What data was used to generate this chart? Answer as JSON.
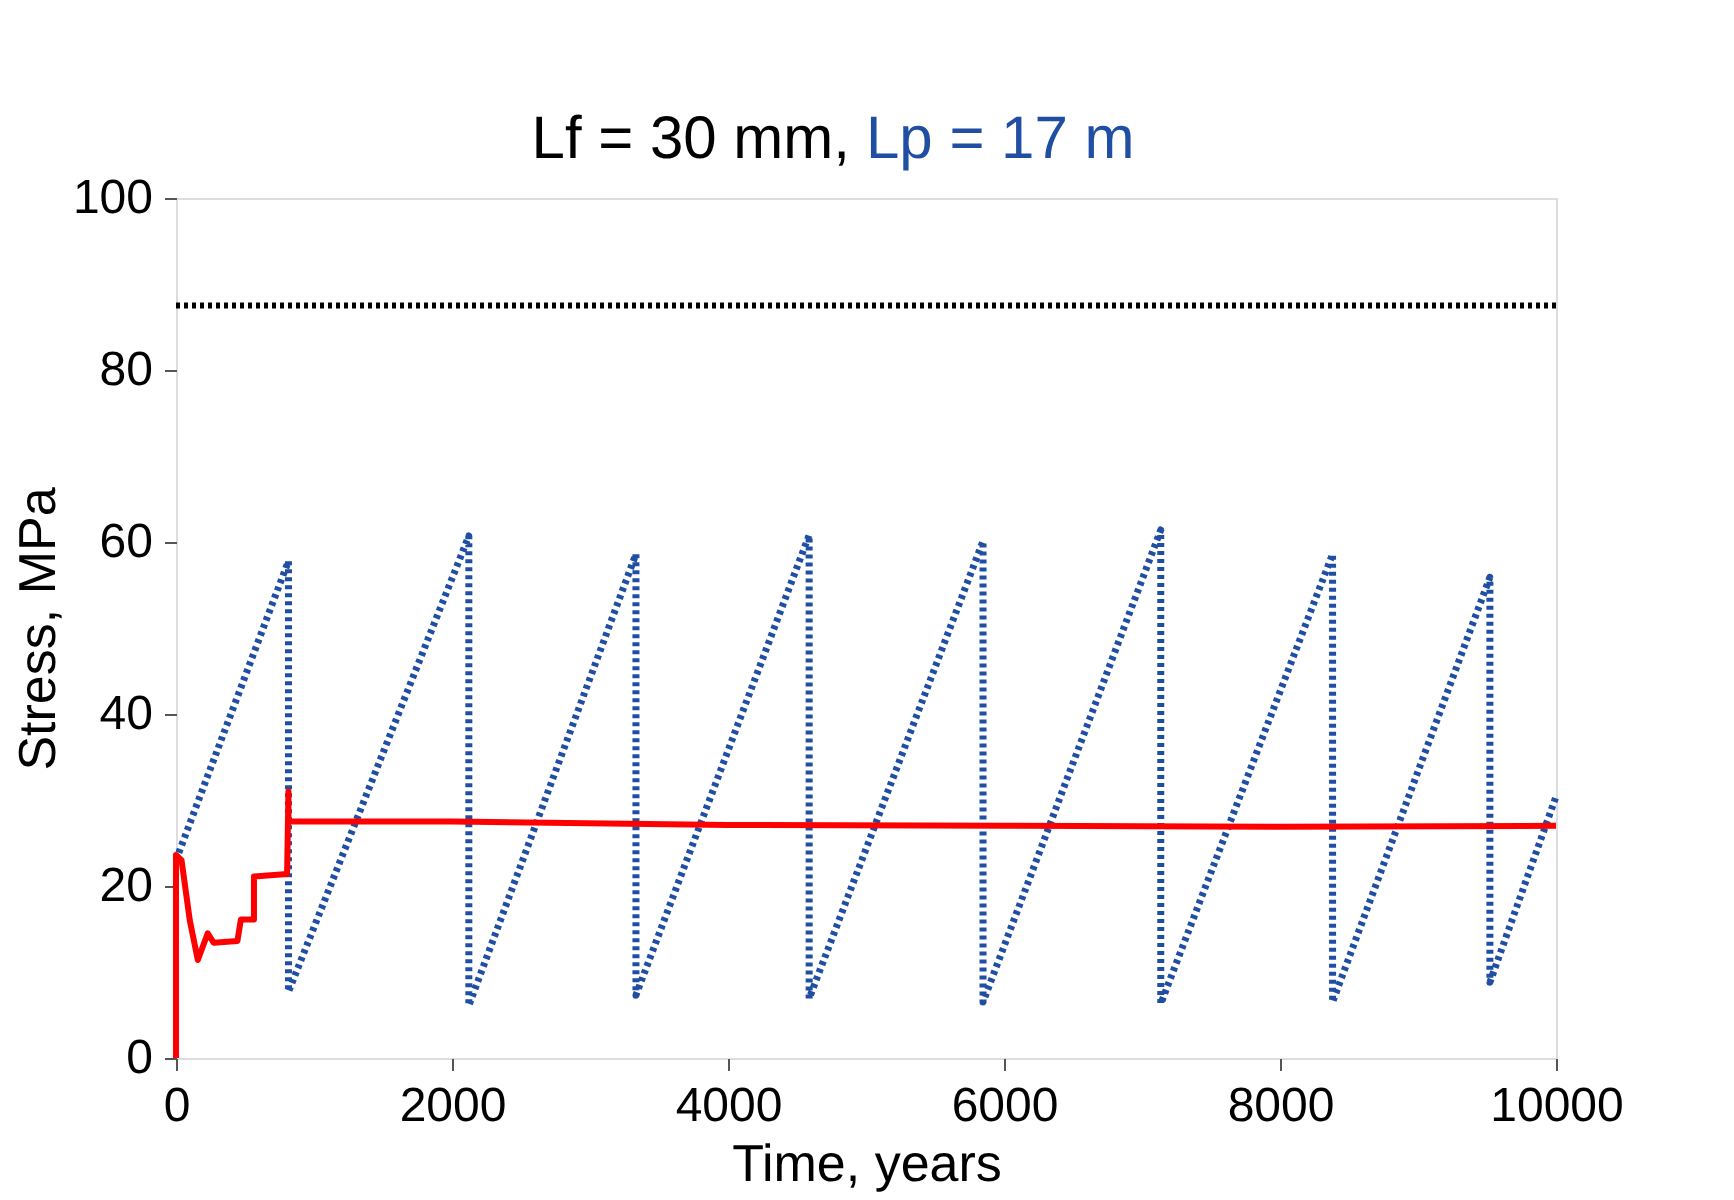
{
  "chart_data": {
    "type": "line",
    "title": "Lf = 30 mm,",
    "subtitle": "Lp = 17 m",
    "xlabel": "Time, years",
    "ylabel": "Stress, MPa",
    "xlim": [
      0,
      10000
    ],
    "xticks": [
      0,
      2000,
      4000,
      6000,
      8000,
      10000
    ],
    "ylim": [
      0,
      100
    ],
    "yticks": [
      0,
      20,
      40,
      60,
      80,
      100
    ],
    "grid": false,
    "series": [
      {
        "color": "#1f4ea3",
        "line_style": "dotted",
        "x": [
          0,
          815,
          815,
          2122,
          2122,
          3333,
          3333,
          4588,
          4588,
          5848,
          5848,
          7136,
          7136,
          8381,
          8381,
          9521,
          9521,
          10000
        ],
        "values": [
          23,
          57.8,
          7.7,
          60.7,
          6.1,
          58.6,
          7.3,
          60.8,
          6.9,
          60.1,
          6.5,
          61.4,
          6.3,
          58.6,
          6.5,
          55.9,
          8.8,
          30.4
        ]
      },
      {
        "color": "#ff0000",
        "line_style": "solid",
        "x": [
          0,
          0,
          40,
          100,
          158,
          230,
          273,
          445,
          470,
          565,
          565,
          805,
          815,
          815,
          2000,
          4000,
          6000,
          8000,
          10000
        ],
        "values": [
          0,
          23.6,
          23,
          16,
          11.4,
          14.5,
          13.4,
          13.6,
          16.1,
          16.1,
          21.1,
          21.4,
          31,
          27.5,
          27.5,
          27.1,
          27,
          26.9,
          27
        ]
      }
    ],
    "ref_lines": [
      {
        "axis": "y",
        "value": 87.5,
        "color": "#000000",
        "line_style": "dotted"
      }
    ]
  }
}
